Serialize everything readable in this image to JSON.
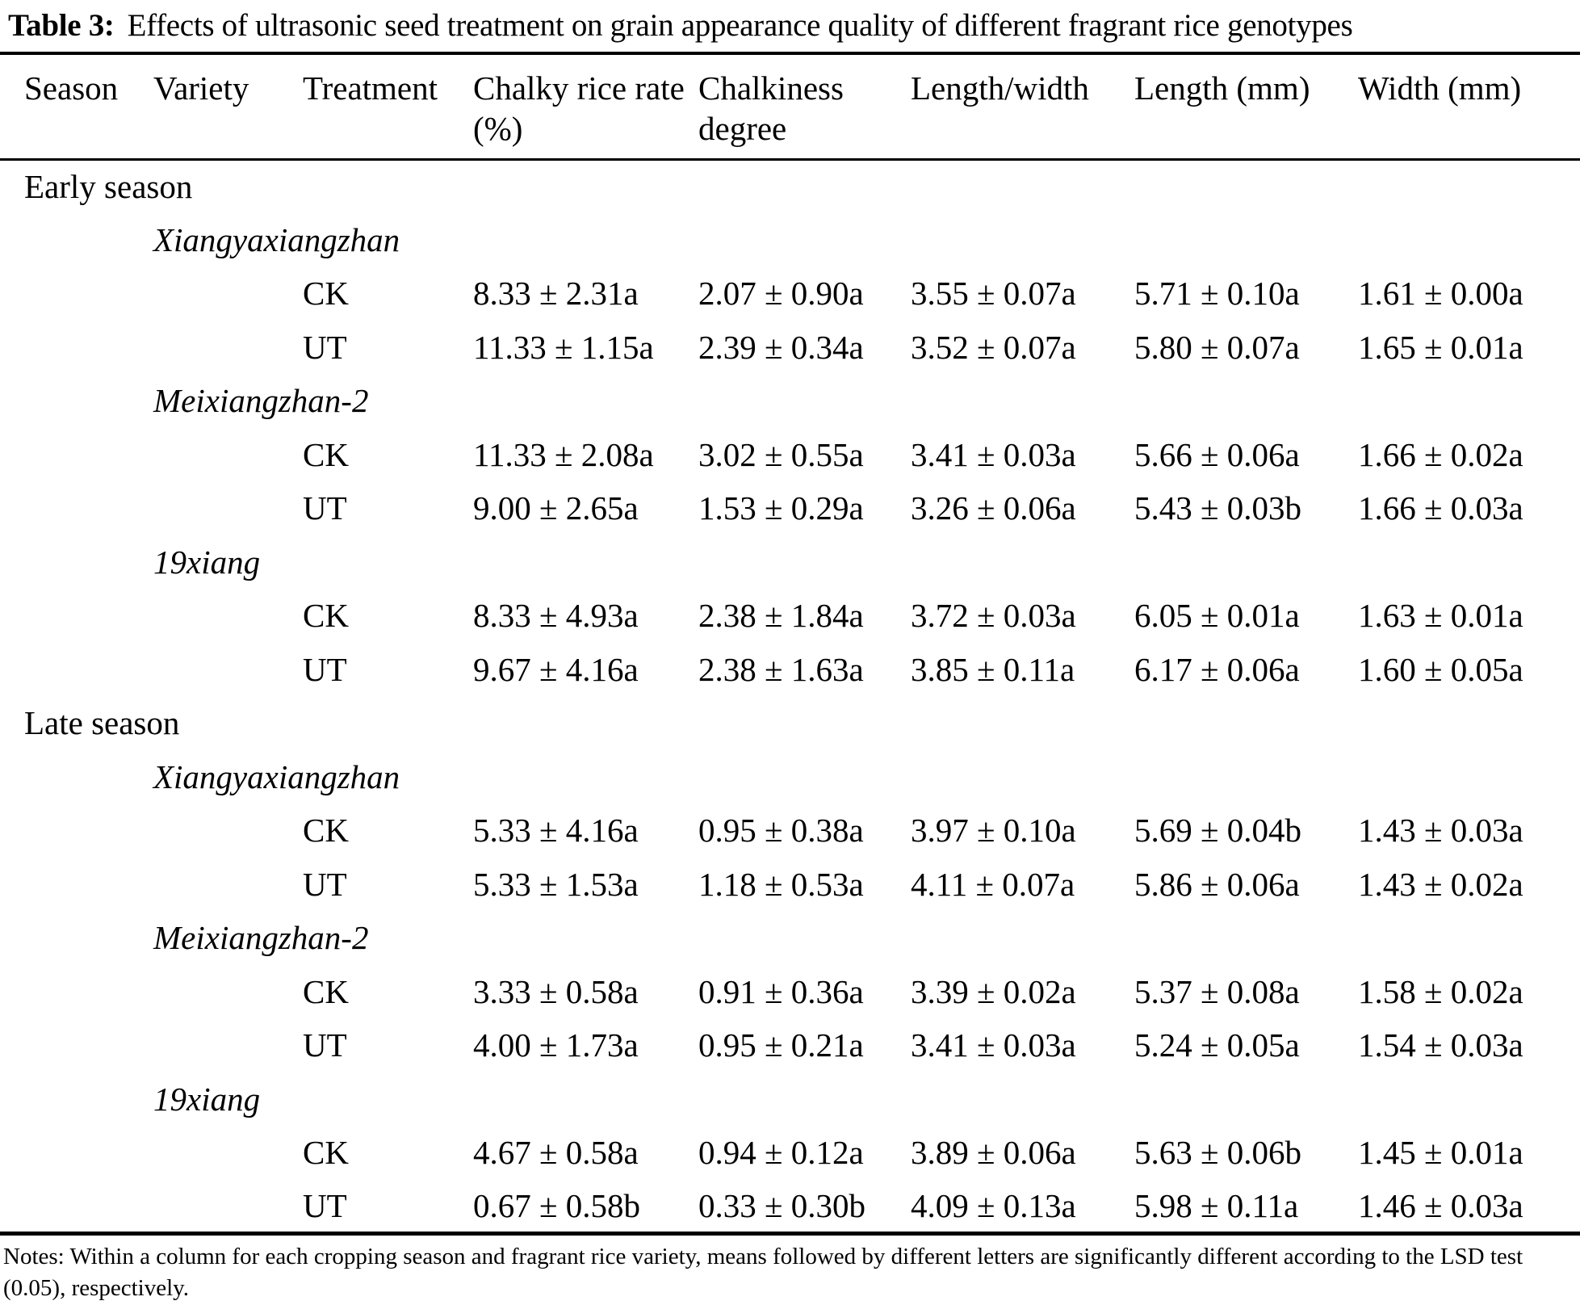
{
  "title": {
    "label": "Table 3:",
    "text": "Effects of ultrasonic seed treatment on grain appearance quality of different fragrant rice genotypes"
  },
  "table": {
    "columns": [
      "Season",
      "Variety",
      "Treatment",
      "Chalky rice rate (%)",
      "Chalkiness degree",
      "Length/width",
      "Length (mm)",
      "Width (mm)"
    ],
    "sections": [
      {
        "season": "Early season",
        "varieties": [
          {
            "name": "Xiangyaxiangzhan",
            "rows": [
              {
                "treatment": "CK",
                "values": [
                  "8.33 ± 2.31a",
                  "2.07 ± 0.90a",
                  "3.55 ± 0.07a",
                  "5.71 ± 0.10a",
                  "1.61 ± 0.00a"
                ]
              },
              {
                "treatment": "UT",
                "values": [
                  "11.33 ± 1.15a",
                  "2.39 ± 0.34a",
                  "3.52 ± 0.07a",
                  "5.80 ± 0.07a",
                  "1.65 ± 0.01a"
                ]
              }
            ]
          },
          {
            "name": "Meixiangzhan-2",
            "rows": [
              {
                "treatment": "CK",
                "values": [
                  "11.33 ± 2.08a",
                  "3.02 ± 0.55a",
                  "3.41 ± 0.03a",
                  "5.66 ± 0.06a",
                  "1.66 ± 0.02a"
                ]
              },
              {
                "treatment": "UT",
                "values": [
                  "9.00 ± 2.65a",
                  "1.53 ± 0.29a",
                  "3.26 ± 0.06a",
                  "5.43 ± 0.03b",
                  "1.66 ± 0.03a"
                ]
              }
            ]
          },
          {
            "name": "19xiang",
            "rows": [
              {
                "treatment": "CK",
                "values": [
                  "8.33 ± 4.93a",
                  "2.38 ± 1.84a",
                  "3.72 ± 0.03a",
                  "6.05 ± 0.01a",
                  "1.63 ± 0.01a"
                ]
              },
              {
                "treatment": "UT",
                "values": [
                  "9.67 ± 4.16a",
                  "2.38 ± 1.63a",
                  "3.85 ± 0.11a",
                  "6.17 ± 0.06a",
                  "1.60 ± 0.05a"
                ]
              }
            ]
          }
        ]
      },
      {
        "season": "Late season",
        "varieties": [
          {
            "name": "Xiangyaxiangzhan",
            "rows": [
              {
                "treatment": "CK",
                "values": [
                  "5.33 ± 4.16a",
                  "0.95 ± 0.38a",
                  "3.97 ± 0.10a",
                  "5.69 ± 0.04b",
                  "1.43 ± 0.03a"
                ]
              },
              {
                "treatment": "UT",
                "values": [
                  "5.33 ± 1.53a",
                  "1.18 ± 0.53a",
                  "4.11 ± 0.07a",
                  "5.86 ± 0.06a",
                  "1.43 ± 0.02a"
                ]
              }
            ]
          },
          {
            "name": "Meixiangzhan-2",
            "rows": [
              {
                "treatment": "CK",
                "values": [
                  "3.33 ± 0.58a",
                  "0.91 ± 0.36a",
                  "3.39 ± 0.02a",
                  "5.37 ± 0.08a",
                  "1.58 ± 0.02a"
                ]
              },
              {
                "treatment": "UT",
                "values": [
                  "4.00 ± 1.73a",
                  "0.95 ± 0.21a",
                  "3.41 ± 0.03a",
                  "5.24 ± 0.05a",
                  "1.54 ± 0.03a"
                ]
              }
            ]
          },
          {
            "name": "19xiang",
            "rows": [
              {
                "treatment": "CK",
                "values": [
                  "4.67 ± 0.58a",
                  "0.94 ± 0.12a",
                  "3.89 ± 0.06a",
                  "5.63 ± 0.06b",
                  "1.45 ± 0.01a"
                ]
              },
              {
                "treatment": "UT",
                "values": [
                  "0.67 ± 0.58b",
                  "0.33 ± 0.30b",
                  "4.09 ± 0.13a",
                  "5.98 ± 0.11a",
                  "1.46 ± 0.03a"
                ]
              }
            ]
          }
        ]
      }
    ]
  },
  "notes": "Notes: Within a column for each cropping season and fragrant rice variety, means followed by different letters are significantly different according to the LSD test (0.05), respectively."
}
